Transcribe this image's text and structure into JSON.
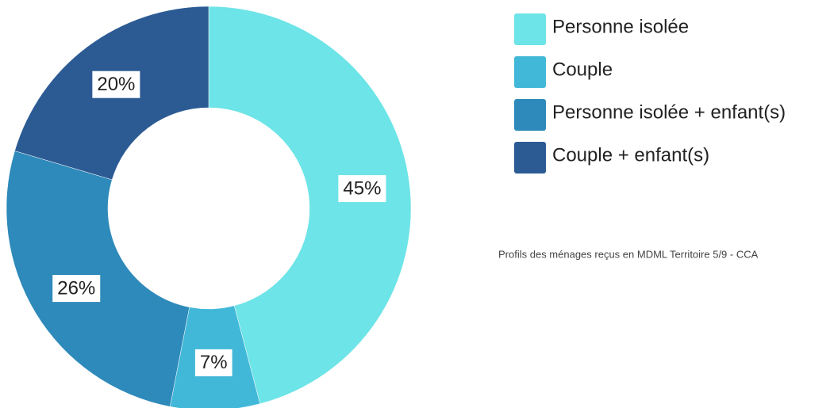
{
  "chart_data": {
    "type": "donut",
    "title": "Profils des ménages reçus en MDML Territoire 5/9 - CCA",
    "categories": [
      "Personne isolée",
      "Couple",
      "Personne isolée + enfant(s)",
      "Couple + enfant(s)"
    ],
    "values": [
      45,
      7,
      26,
      20
    ],
    "value_labels": [
      "45%",
      "7%",
      "26%",
      "20%"
    ],
    "colors": [
      "#6de4e7",
      "#42b8d8",
      "#2e8aba",
      "#2c5b94"
    ]
  }
}
